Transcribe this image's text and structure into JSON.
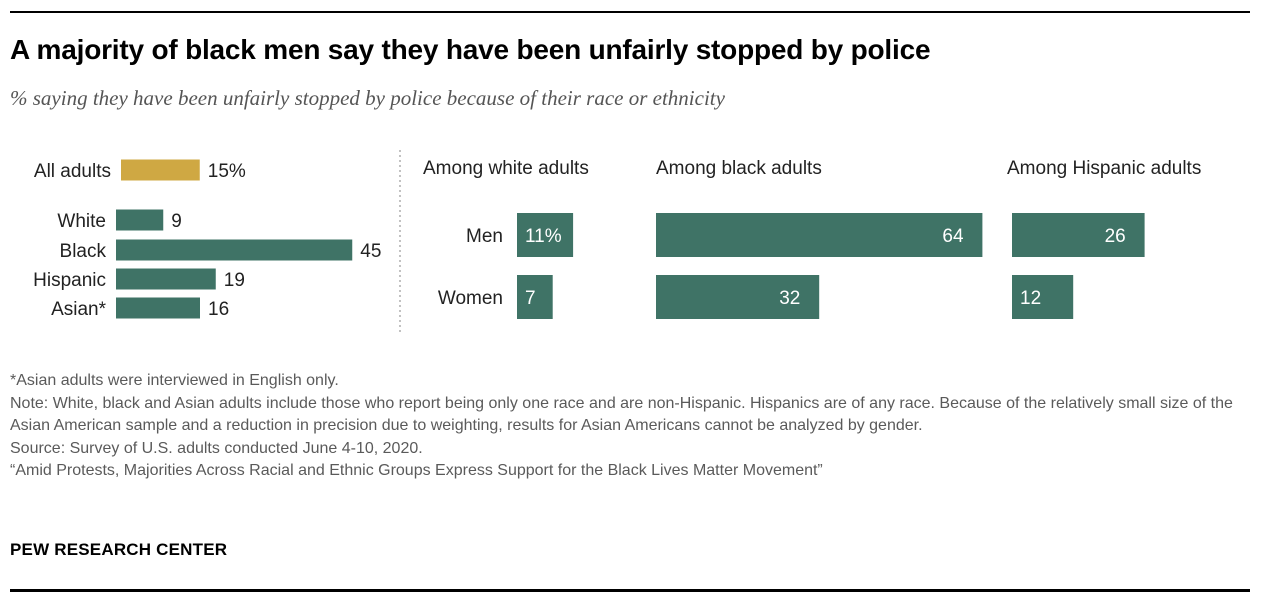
{
  "header": {
    "title": "A majority of black men say they have been unfairly stopped by police",
    "subtitle": "% saying they have been unfairly stopped by police because of their race or ethnicity"
  },
  "colors": {
    "overall": "#cfa843",
    "race": "#3f7366",
    "divider": "#9a9a9a"
  },
  "chart_data": [
    {
      "type": "bar",
      "orientation": "horizontal",
      "unit": "%",
      "categories": [
        "All adults",
        "White",
        "Black",
        "Hispanic",
        "Asian*"
      ],
      "values": [
        15,
        9,
        45,
        19,
        16
      ],
      "value_labels": [
        "15%",
        "9",
        "45",
        "19",
        "16"
      ],
      "highlight": "All adults"
    },
    {
      "type": "bar",
      "orientation": "horizontal",
      "unit": "%",
      "categories": [
        "Men",
        "Women"
      ],
      "panels": [
        {
          "name": "Among white adults",
          "values": [
            11,
            7
          ],
          "value_labels": [
            "11%",
            "7"
          ]
        },
        {
          "name": "Among black adults",
          "values": [
            64,
            32
          ],
          "value_labels": [
            "64",
            "32"
          ]
        },
        {
          "name": "Among Hispanic adults",
          "values": [
            26,
            12
          ],
          "value_labels": [
            "26",
            "12"
          ]
        }
      ]
    }
  ],
  "notes": {
    "asterisk": "*Asian adults were interviewed in English only.",
    "note": "Note: White, black and Asian adults include those who report being only one race and are non-Hispanic. Hispanics are of any race. Because of the relatively small size of the Asian American sample and a reduction in precision due to weighting, results for Asian Americans cannot be analyzed by gender.",
    "source": "Source: Survey of U.S. adults conducted June 4-10, 2020.",
    "report": "“Amid Protests, Majorities Across Racial and Ethnic Groups Express Support for the Black Lives Matter Movement”"
  },
  "brand": "PEW RESEARCH CENTER"
}
